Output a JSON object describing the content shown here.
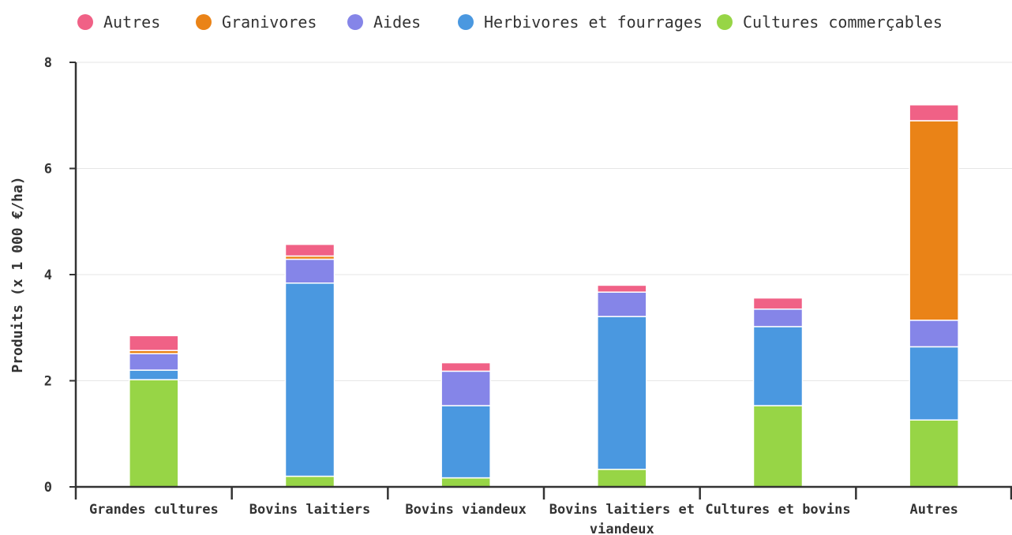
{
  "chart_data": {
    "type": "bar",
    "stacked": true,
    "title": "",
    "xlabel": "",
    "ylabel": "Produits (x 1 000 €/ha)",
    "ylim": [
      0,
      8
    ],
    "yticks": [
      "0",
      "2",
      "4",
      "6",
      "8"
    ],
    "grid": true,
    "legend_position": "top",
    "categories": [
      [
        "Grandes cultures"
      ],
      [
        "Bovins laitiers"
      ],
      [
        "Bovins viandeux"
      ],
      [
        "Bovins laitiers et",
        "viandeux"
      ],
      [
        "Cultures et bovins"
      ],
      [
        "Autres"
      ]
    ],
    "series": [
      {
        "name": "Cultures commerçables",
        "color": "#97d546",
        "values": [
          2.02,
          0.2,
          0.17,
          0.33,
          1.53,
          1.26
        ]
      },
      {
        "name": "Herbivores et fourrages",
        "color": "#4a98e0",
        "values": [
          0.18,
          3.64,
          1.36,
          2.88,
          1.49,
          1.38
        ]
      },
      {
        "name": "Aides",
        "color": "#8585e8",
        "values": [
          0.31,
          0.45,
          0.65,
          0.46,
          0.33,
          0.5
        ]
      },
      {
        "name": "Granivores",
        "color": "#ea8317",
        "values": [
          0.06,
          0.06,
          0.0,
          0.0,
          0.0,
          3.76
        ]
      },
      {
        "name": "Autres",
        "color": "#f06186",
        "values": [
          0.28,
          0.22,
          0.16,
          0.13,
          0.21,
          0.3
        ]
      }
    ],
    "legend_order": [
      "Autres",
      "Granivores",
      "Aides",
      "Herbivores et fourrages",
      "Cultures commerçables"
    ]
  }
}
